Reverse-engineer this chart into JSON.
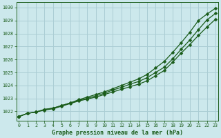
{
  "title": "Graphe pression niveau de la mer (hPa)",
  "bg_color": "#cce8ec",
  "grid_color": "#aacdd4",
  "line_color": "#1a5c1a",
  "x_ticks": [
    0,
    1,
    2,
    3,
    4,
    5,
    6,
    7,
    8,
    9,
    10,
    11,
    12,
    13,
    14,
    15,
    16,
    17,
    18,
    19,
    20,
    21,
    22,
    23
  ],
  "y_ticks": [
    1022,
    1023,
    1024,
    1025,
    1026,
    1027,
    1028,
    1029,
    1030
  ],
  "ylim": [
    1021.3,
    1030.4
  ],
  "xlim": [
    -0.3,
    23.3
  ],
  "line1": [
    1021.6,
    1021.85,
    1021.95,
    1022.1,
    1022.2,
    1022.4,
    1022.6,
    1022.8,
    1022.95,
    1023.1,
    1023.3,
    1023.5,
    1023.7,
    1023.9,
    1024.1,
    1024.35,
    1024.75,
    1025.15,
    1025.8,
    1026.5,
    1027.15,
    1027.85,
    1028.5,
    1029.1
  ],
  "line2": [
    1021.6,
    1021.85,
    1021.95,
    1022.15,
    1022.25,
    1022.45,
    1022.65,
    1022.85,
    1023.0,
    1023.2,
    1023.4,
    1023.65,
    1023.85,
    1024.1,
    1024.3,
    1024.6,
    1025.0,
    1025.4,
    1026.05,
    1026.8,
    1027.5,
    1028.3,
    1029.05,
    1029.55
  ],
  "line3": [
    1021.6,
    1021.85,
    1021.95,
    1022.15,
    1022.25,
    1022.45,
    1022.65,
    1022.9,
    1023.1,
    1023.3,
    1023.5,
    1023.75,
    1024.0,
    1024.25,
    1024.5,
    1024.85,
    1025.35,
    1025.85,
    1026.55,
    1027.3,
    1028.1,
    1029.0,
    1029.5,
    1029.95
  ]
}
